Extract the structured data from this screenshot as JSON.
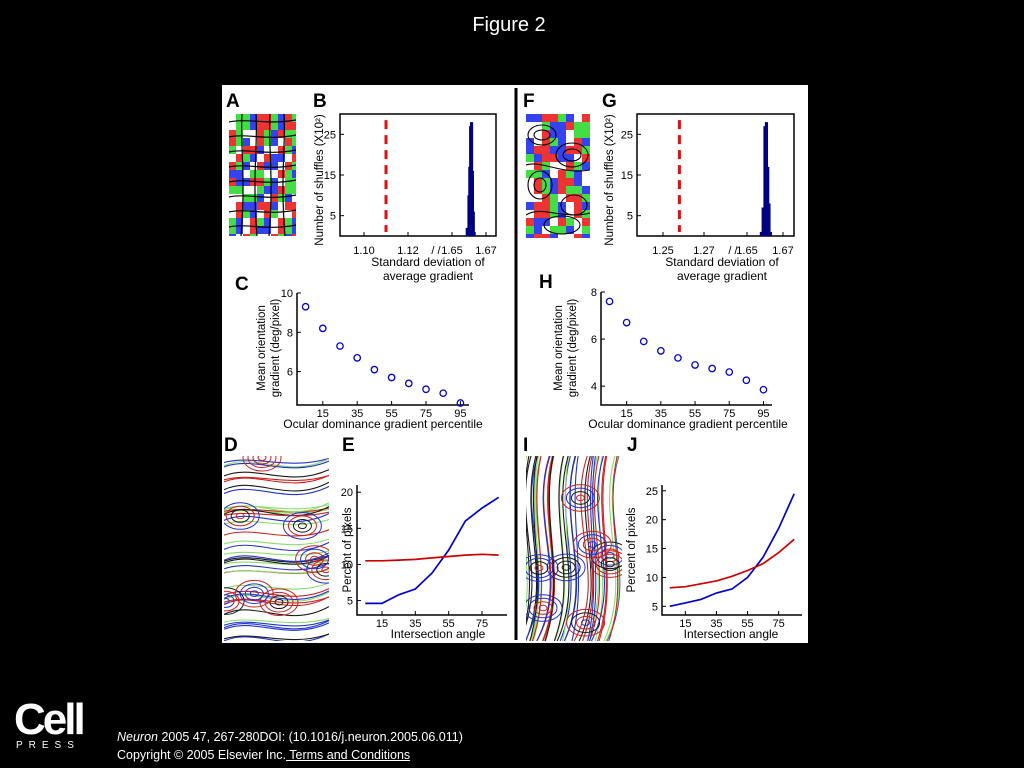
{
  "slide": {
    "title": "Figure 2"
  },
  "panel_letters": {
    "A": "A",
    "B": "B",
    "C": "C",
    "D": "D",
    "E": "E",
    "F": "F",
    "G": "G",
    "H": "H",
    "I": "I",
    "J": "J"
  },
  "footer": {
    "logo_word": "Cell",
    "logo_press": "PRESS",
    "journal": "Neuron",
    "citation_rest": " 2005 47, 267-280DOI: (10.1016/j.neuron.2005.06.011)",
    "copyright": "Copyright © 2005 Elsevier Inc.",
    "terms_link": " Terms and Conditions"
  },
  "colors": {
    "blue": "#0000cc",
    "red": "#cc0000",
    "navy": "#000080",
    "dashed_red": "#dd1111"
  },
  "chart_data": [
    {
      "panel": "B",
      "type": "histogram",
      "ylabel": "Number of shuffles (X10²)",
      "xlabel": "Standard deviation of average gradient",
      "xticks": [
        "1.10",
        "1.12",
        "1.65",
        "1.67"
      ],
      "yticks": [
        "5",
        "15",
        "25"
      ],
      "ylim": [
        0,
        30
      ],
      "axis_break": "/ /",
      "actual_value_dashed_line": 1.11,
      "histogram": [
        {
          "x": 1.659,
          "count": 2
        },
        {
          "x": 1.66,
          "count": 10
        },
        {
          "x": 1.6605,
          "count": 17
        },
        {
          "x": 1.661,
          "count": 27
        },
        {
          "x": 1.6615,
          "count": 28
        },
        {
          "x": 1.662,
          "count": 16
        },
        {
          "x": 1.6625,
          "count": 6
        },
        {
          "x": 1.663,
          "count": 1
        }
      ]
    },
    {
      "panel": "G",
      "type": "histogram",
      "ylabel": "Number of shuffles (X10²)",
      "xlabel": "Standard deviation of average gradient",
      "xticks": [
        "1.25",
        "1.27",
        "1.65",
        "1.67"
      ],
      "yticks": [
        "5",
        "15",
        "25"
      ],
      "ylim": [
        0,
        30
      ],
      "axis_break": "/ /",
      "actual_value_dashed_line": 1.258,
      "histogram": [
        {
          "x": 1.658,
          "count": 1
        },
        {
          "x": 1.659,
          "count": 7
        },
        {
          "x": 1.66,
          "count": 27
        },
        {
          "x": 1.6608,
          "count": 28
        },
        {
          "x": 1.6615,
          "count": 17
        },
        {
          "x": 1.6622,
          "count": 8
        },
        {
          "x": 1.663,
          "count": 1
        }
      ]
    },
    {
      "panel": "C",
      "type": "scatter",
      "ylabel": "Mean orientation gradient (deg/pixel)",
      "xlabel": "Ocular dominance gradient percentile",
      "xticks": [
        "15",
        "35",
        "55",
        "75",
        "95"
      ],
      "yticks": [
        "6",
        "8",
        "10"
      ],
      "xlim": [
        0,
        100
      ],
      "ylim": [
        4.3,
        10
      ],
      "points": [
        {
          "x": 5,
          "y": 9.3
        },
        {
          "x": 15,
          "y": 8.2
        },
        {
          "x": 25,
          "y": 7.3
        },
        {
          "x": 35,
          "y": 6.7
        },
        {
          "x": 45,
          "y": 6.1
        },
        {
          "x": 55,
          "y": 5.7
        },
        {
          "x": 65,
          "y": 5.4
        },
        {
          "x": 75,
          "y": 5.1
        },
        {
          "x": 85,
          "y": 4.9
        },
        {
          "x": 95,
          "y": 4.4
        }
      ]
    },
    {
      "panel": "H",
      "type": "scatter",
      "ylabel": "Mean orientation gradient (deg/pixel)",
      "xlabel": "Ocular dominance gradient percentile",
      "xticks": [
        "15",
        "35",
        "55",
        "75",
        "95"
      ],
      "yticks": [
        "4",
        "6",
        "8"
      ],
      "xlim": [
        0,
        100
      ],
      "ylim": [
        3.2,
        8
      ],
      "points": [
        {
          "x": 5,
          "y": 7.6
        },
        {
          "x": 15,
          "y": 6.7
        },
        {
          "x": 25,
          "y": 5.9
        },
        {
          "x": 35,
          "y": 5.5
        },
        {
          "x": 45,
          "y": 5.2
        },
        {
          "x": 55,
          "y": 4.9
        },
        {
          "x": 65,
          "y": 4.75
        },
        {
          "x": 75,
          "y": 4.6
        },
        {
          "x": 85,
          "y": 4.25
        },
        {
          "x": 95,
          "y": 3.85
        }
      ]
    },
    {
      "panel": "E",
      "type": "line",
      "ylabel": "Percent of pixels",
      "xlabel": "Intersection angle",
      "xticks": [
        "15",
        "35",
        "55",
        "75"
      ],
      "yticks": [
        "5",
        "10",
        "15",
        "20"
      ],
      "xlim": [
        0,
        90
      ],
      "ylim": [
        3,
        21
      ],
      "series": [
        {
          "color": "#0000cc",
          "points": [
            [
              5,
              4.6
            ],
            [
              15,
              4.6
            ],
            [
              25,
              5.8
            ],
            [
              35,
              6.6
            ],
            [
              45,
              8.8
            ],
            [
              55,
              12
            ],
            [
              65,
              16
            ],
            [
              75,
              17.8
            ],
            [
              85,
              19.3
            ]
          ]
        },
        {
          "color": "#cc0000",
          "points": [
            [
              5,
              10.5
            ],
            [
              15,
              10.5
            ],
            [
              25,
              10.6
            ],
            [
              35,
              10.7
            ],
            [
              45,
              10.9
            ],
            [
              55,
              11.1
            ],
            [
              65,
              11.3
            ],
            [
              75,
              11.4
            ],
            [
              85,
              11.3
            ]
          ]
        }
      ]
    },
    {
      "panel": "J",
      "type": "line",
      "ylabel": "Percent of pixels",
      "xlabel": "Intersection angle",
      "xticks": [
        "15",
        "35",
        "55",
        "75"
      ],
      "yticks": [
        "5",
        "10",
        "15",
        "20",
        "25"
      ],
      "xlim": [
        0,
        90
      ],
      "ylim": [
        3.5,
        26
      ],
      "series": [
        {
          "color": "#0000cc",
          "points": [
            [
              5,
              5
            ],
            [
              15,
              5.6
            ],
            [
              25,
              6.2
            ],
            [
              35,
              7.3
            ],
            [
              45,
              8
            ],
            [
              55,
              10
            ],
            [
              65,
              13.5
            ],
            [
              75,
              18.5
            ],
            [
              85,
              24.5
            ]
          ]
        },
        {
          "color": "#cc0000",
          "points": [
            [
              5,
              8.2
            ],
            [
              15,
              8.4
            ],
            [
              25,
              8.9
            ],
            [
              35,
              9.4
            ],
            [
              45,
              10.2
            ],
            [
              55,
              11.2
            ],
            [
              65,
              12.4
            ],
            [
              75,
              14.3
            ],
            [
              85,
              16.6
            ]
          ]
        }
      ]
    }
  ]
}
